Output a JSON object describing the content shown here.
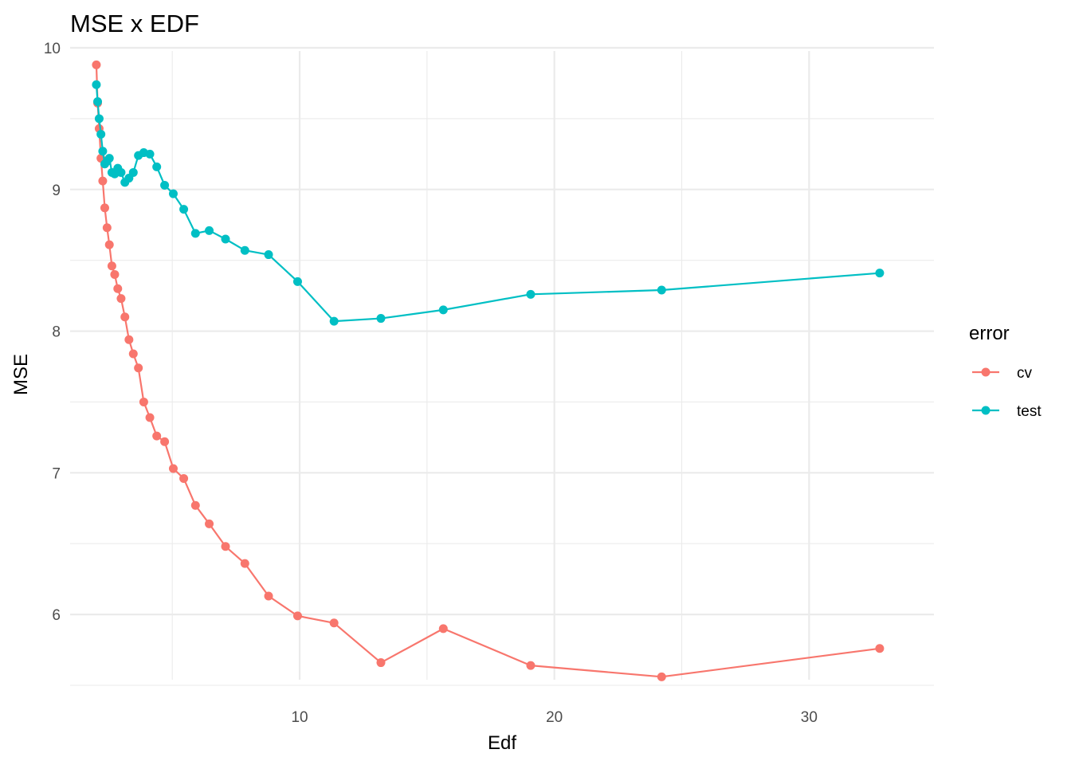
{
  "chart_data": {
    "type": "line",
    "title": "MSE x EDF",
    "xlabel": "Edf",
    "ylabel": "MSE",
    "xlim": [
      0.99,
      34.9
    ],
    "ylim": [
      5.5,
      10.0
    ],
    "x_ticks": [
      10,
      20,
      30
    ],
    "x_tick_labels": [
      "10",
      "20",
      "30"
    ],
    "y_ticks": [
      6,
      7,
      8,
      9,
      10
    ],
    "y_tick_labels": [
      "6",
      "7",
      "8",
      "9",
      "10"
    ],
    "grid": true,
    "legend": {
      "title": "error",
      "position": "right"
    },
    "series": [
      {
        "name": "cv",
        "color": "#F8766D",
        "x": [
          2.02,
          2.07,
          2.13,
          2.2,
          2.27,
          2.35,
          2.44,
          2.53,
          2.63,
          2.74,
          2.86,
          2.99,
          3.14,
          3.3,
          3.47,
          3.67,
          3.88,
          4.12,
          4.39,
          4.7,
          5.04,
          5.45,
          5.91,
          6.45,
          7.09,
          7.85,
          8.78,
          9.92,
          11.35,
          13.19,
          15.64,
          19.07,
          24.21,
          32.77
        ],
        "y": [
          9.88,
          9.61,
          9.43,
          9.22,
          9.06,
          8.87,
          8.73,
          8.61,
          8.46,
          8.4,
          8.3,
          8.23,
          8.1,
          7.94,
          7.84,
          7.74,
          7.5,
          7.39,
          7.26,
          7.22,
          7.03,
          6.96,
          6.77,
          6.64,
          6.48,
          6.36,
          6.13,
          5.99,
          5.94,
          5.66,
          5.9,
          5.64,
          5.56,
          5.76
        ]
      },
      {
        "name": "test",
        "color": "#00BFC4",
        "x": [
          2.02,
          2.07,
          2.13,
          2.2,
          2.27,
          2.35,
          2.44,
          2.53,
          2.63,
          2.74,
          2.86,
          2.99,
          3.14,
          3.3,
          3.47,
          3.67,
          3.88,
          4.12,
          4.39,
          4.7,
          5.04,
          5.45,
          5.91,
          6.45,
          7.09,
          7.85,
          8.78,
          9.92,
          11.35,
          13.19,
          15.64,
          19.07,
          24.21,
          32.77
        ],
        "y": [
          9.74,
          9.62,
          9.5,
          9.39,
          9.27,
          9.18,
          9.2,
          9.22,
          9.12,
          9.11,
          9.15,
          9.12,
          9.05,
          9.08,
          9.12,
          9.24,
          9.26,
          9.25,
          9.16,
          9.03,
          8.97,
          8.86,
          8.69,
          8.71,
          8.65,
          8.57,
          8.54,
          8.35,
          8.07,
          8.09,
          8.15,
          8.26,
          8.29,
          8.41
        ]
      }
    ]
  }
}
